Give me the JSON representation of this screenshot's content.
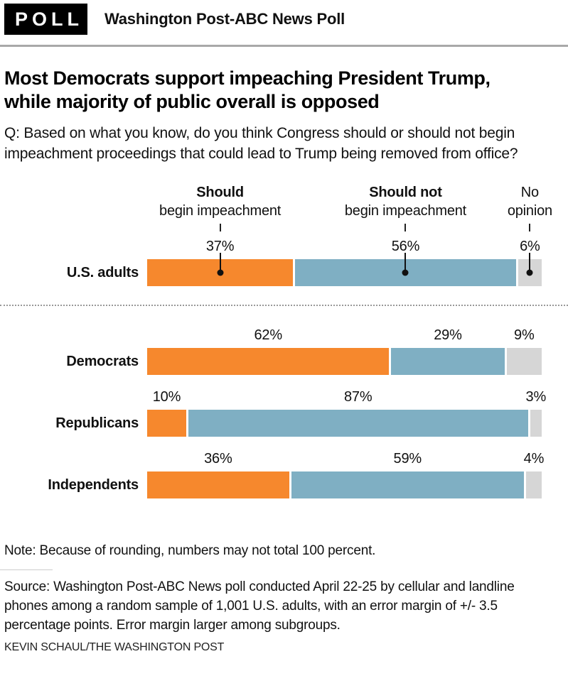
{
  "masthead": {
    "badge": "POLL",
    "title": "Washington Post-ABC News Poll"
  },
  "headline": "Most Democrats support impeaching President Trump, while majority of public overall is opposed",
  "question": "Q: Based on what you know, do you think Congress should or should not begin impeachment proceedings that could lead to Trump being removed from office?",
  "legend": {
    "should_title": "Should",
    "should_sub": "begin impeachment",
    "should_not_title": "Should not",
    "should_not_sub": "begin impeachment",
    "no_opinion_line1": "No",
    "no_opinion_line2": "opinion"
  },
  "rows": [
    {
      "label": "U.S. adults",
      "values": [
        "37%",
        "56%",
        "6%"
      ]
    },
    {
      "label": "Democrats",
      "values": [
        "62%",
        "29%",
        "9%"
      ]
    },
    {
      "label": "Republicans",
      "values": [
        "10%",
        "87%",
        "3%"
      ]
    },
    {
      "label": "Independents",
      "values": [
        "36%",
        "59%",
        "4%"
      ]
    }
  ],
  "chart_data": {
    "type": "bar",
    "orientation": "horizontal",
    "stacked": true,
    "title": "Most Democrats support impeaching President Trump, while majority of public overall is opposed",
    "categories": [
      "U.S. adults",
      "Democrats",
      "Republicans",
      "Independents"
    ],
    "series": [
      {
        "name": "Should begin impeachment",
        "color": "#f6882d",
        "values": [
          37,
          62,
          10,
          36
        ]
      },
      {
        "name": "Should not begin impeachment",
        "color": "#7fafc3",
        "values": [
          56,
          29,
          87,
          59
        ]
      },
      {
        "name": "No opinion",
        "color": "#d6d6d6",
        "values": [
          6,
          9,
          3,
          4
        ]
      }
    ],
    "value_suffix": "%",
    "xlim": [
      0,
      100
    ],
    "grid": false,
    "legend_position": "top"
  },
  "footer": {
    "note": "Note: Because of rounding, numbers may not total 100 percent.",
    "source": "Source: Washington Post-ABC News poll conducted April 22-25 by cellular and landline phones among a random sample of 1,001 U.S. adults, with an error margin of +/- 3.5 percentage points. Error margin larger among subgroups.",
    "byline": "KEVIN SCHAUL/THE WASHINGTON POST"
  },
  "colors": {
    "orange": "#f6882d",
    "blue": "#7fafc3",
    "gray": "#d6d6d6",
    "rule": "#a8a8a8"
  }
}
